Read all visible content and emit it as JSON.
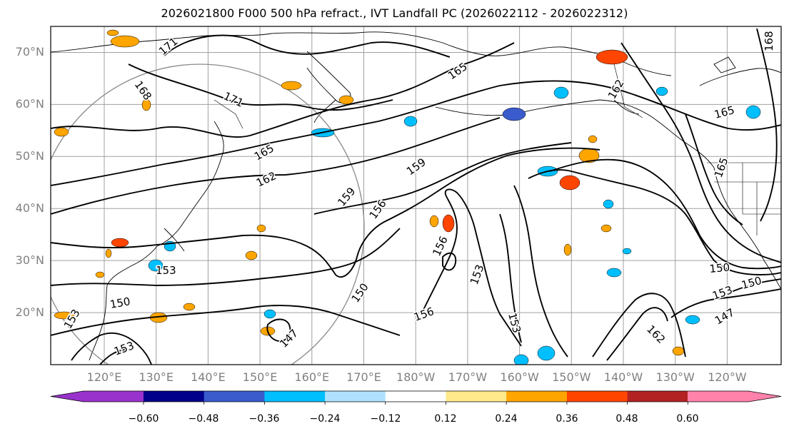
{
  "title": "2026021800 F000 500 hPa refract., IVT Landfall PC (2026022112 - 2026022312)",
  "map": {
    "lat_labels": [
      "70°N",
      "60°N",
      "50°N",
      "40°N",
      "30°N",
      "20°N"
    ],
    "lat_values": [
      70,
      60,
      50,
      40,
      30,
      20
    ],
    "lon_labels": [
      "120°E",
      "130°E",
      "140°E",
      "150°E",
      "160°E",
      "170°E",
      "180°W",
      "170°W",
      "160°W",
      "150°W",
      "140°W",
      "130°W",
      "120°W"
    ],
    "lat_range": [
      10,
      75
    ],
    "contour_labels": [
      "171",
      "168",
      "171",
      "165",
      "162",
      "159",
      "156",
      "159",
      "165",
      "162",
      "165",
      "165",
      "168",
      "153",
      "150",
      "153",
      "150",
      "147",
      "156",
      "156",
      "150",
      "153",
      "147",
      "162",
      "150",
      "153",
      "153",
      "153"
    ]
  },
  "colorbar": {
    "tick_labels": [
      "−0.60",
      "−0.48",
      "−0.36",
      "−0.24",
      "−0.12",
      "0.12",
      "0.24",
      "0.36",
      "0.48",
      "0.60"
    ],
    "colors": [
      "#9932cc",
      "#00008b",
      "#3a5bcc",
      "#00bfff",
      "#b0e2ff",
      "#ffffff",
      "#ffe98a",
      "#ffa500",
      "#ff4500",
      "#b22222",
      "#ff82ab"
    ]
  }
}
